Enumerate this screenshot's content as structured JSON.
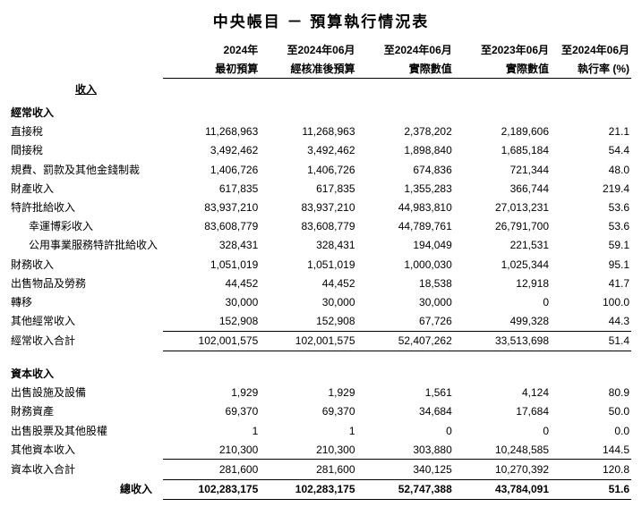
{
  "title": "中央帳目 － 預算執行情況表",
  "headers": {
    "col1_l1": "2024年",
    "col1_l2": "最初預算",
    "col2_l1": "至2024年06月",
    "col2_l2": "經核准後預算",
    "col3_l1": "至2024年06月",
    "col3_l2": "實際數值",
    "col4_l1": "至2023年06月",
    "col4_l2": "實際數值",
    "col5_l1": "至2024年06月",
    "col5_l2": "執行率 (%)"
  },
  "sections": {
    "revenue": "收入",
    "recurrent": "經常收入",
    "capital": "資本收入"
  },
  "rows": {
    "r1": {
      "label": "直接稅",
      "c1": "11,268,963",
      "c2": "11,268,963",
      "c3": "2,378,202",
      "c4": "2,189,606",
      "c5": "21.1"
    },
    "r2": {
      "label": "間接稅",
      "c1": "3,492,462",
      "c2": "3,492,462",
      "c3": "1,898,840",
      "c4": "1,685,184",
      "c5": "54.4"
    },
    "r3": {
      "label": "規費、罰款及其他金錢制裁",
      "c1": "1,406,726",
      "c2": "1,406,726",
      "c3": "674,836",
      "c4": "721,344",
      "c5": "48.0"
    },
    "r4": {
      "label": "財產收入",
      "c1": "617,835",
      "c2": "617,835",
      "c3": "1,355,283",
      "c4": "366,744",
      "c5": "219.4"
    },
    "r5": {
      "label": "特許批給收入",
      "c1": "83,937,210",
      "c2": "83,937,210",
      "c3": "44,983,810",
      "c4": "27,013,231",
      "c5": "53.6"
    },
    "r6": {
      "label": "幸運博彩收入",
      "c1": "83,608,779",
      "c2": "83,608,779",
      "c3": "44,789,761",
      "c4": "26,791,700",
      "c5": "53.6"
    },
    "r7": {
      "label": "公用事業服務特許批給收入",
      "c1": "328,431",
      "c2": "328,431",
      "c3": "194,049",
      "c4": "221,531",
      "c5": "59.1"
    },
    "r8": {
      "label": "財務收入",
      "c1": "1,051,019",
      "c2": "1,051,019",
      "c3": "1,000,030",
      "c4": "1,025,344",
      "c5": "95.1"
    },
    "r9": {
      "label": "出售物品及勞務",
      "c1": "44,452",
      "c2": "44,452",
      "c3": "18,538",
      "c4": "12,918",
      "c5": "41.7"
    },
    "r10": {
      "label": "轉移",
      "c1": "30,000",
      "c2": "30,000",
      "c3": "30,000",
      "c4": "0",
      "c5": "100.0"
    },
    "r11": {
      "label": "其他經常收入",
      "c1": "152,908",
      "c2": "152,908",
      "c3": "67,726",
      "c4": "499,328",
      "c5": "44.3"
    },
    "st1": {
      "label": "經常收入合計",
      "c1": "102,001,575",
      "c2": "102,001,575",
      "c3": "52,407,262",
      "c4": "33,513,698",
      "c5": "51.4"
    },
    "c1_": {
      "label": "出售設施及設備",
      "c1": "1,929",
      "c2": "1,929",
      "c3": "1,561",
      "c4": "4,124",
      "c5": "80.9"
    },
    "c2_": {
      "label": "財務資產",
      "c1": "69,370",
      "c2": "69,370",
      "c3": "34,684",
      "c4": "17,684",
      "c5": "50.0"
    },
    "c3_": {
      "label": "出售股票及其他股權",
      "c1": "1",
      "c2": "1",
      "c3": "0",
      "c4": "0",
      "c5": "0.0"
    },
    "c4_": {
      "label": "其他資本收入",
      "c1": "210,300",
      "c2": "210,300",
      "c3": "303,880",
      "c4": "10,248,585",
      "c5": "144.5"
    },
    "st2": {
      "label": "資本收入合計",
      "c1": "281,600",
      "c2": "281,600",
      "c3": "340,125",
      "c4": "10,270,392",
      "c5": "120.8"
    },
    "gt": {
      "label": "總收入",
      "c1": "102,283,175",
      "c2": "102,283,175",
      "c3": "52,747,388",
      "c4": "43,784,091",
      "c5": "51.6"
    }
  }
}
